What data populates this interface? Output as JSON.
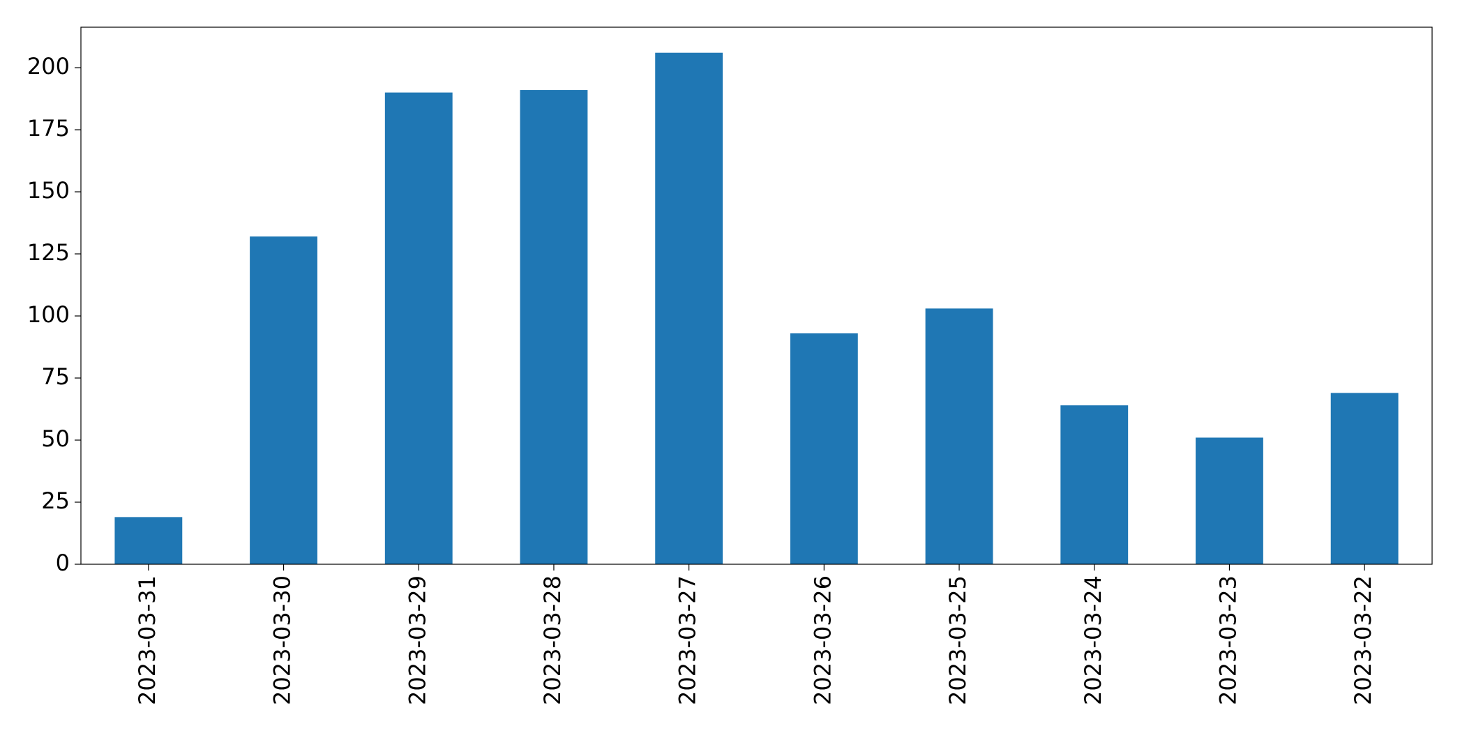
{
  "chart_data": {
    "type": "bar",
    "categories": [
      "2023-03-31",
      "2023-03-30",
      "2023-03-29",
      "2023-03-28",
      "2023-03-27",
      "2023-03-26",
      "2023-03-25",
      "2023-03-24",
      "2023-03-23",
      "2023-03-22"
    ],
    "values": [
      19,
      132,
      190,
      191,
      206,
      93,
      103,
      64,
      51,
      69
    ],
    "color": "#1f77b4",
    "ylim": [
      0,
      216.3
    ],
    "yticks": [
      0,
      25,
      50,
      75,
      100,
      125,
      150,
      175,
      200
    ],
    "grid": false
  }
}
